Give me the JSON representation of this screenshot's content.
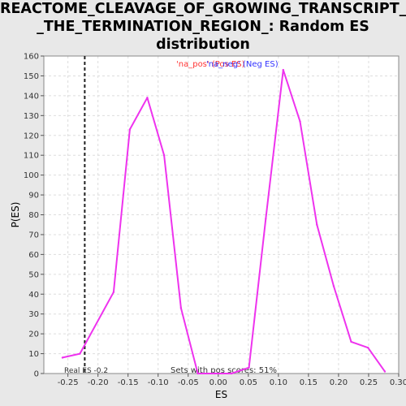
{
  "title_lines": [
    "REACTOME_CLEAVAGE_OF_GROWING_TRANSCRIPT_IN",
    "_THE_TERMINATION_REGION_: Random ES",
    "distribution"
  ],
  "chart_data": {
    "type": "line",
    "xlabel": "ES",
    "ylabel": "P(ES)",
    "xlim": [
      -0.29,
      0.3
    ],
    "ylim": [
      0,
      160
    ],
    "x_ticks": [
      -0.25,
      -0.2,
      -0.15,
      -0.1,
      -0.05,
      0.0,
      0.05,
      0.1,
      0.15,
      0.2,
      0.25,
      0.3
    ],
    "x_tick_labels": [
      "-0.25",
      "-0.20",
      "-0.15",
      "-0.10",
      "-0.05",
      "0.00",
      "0.05",
      "0.10",
      "0.15",
      "0.20",
      "0.25",
      "0.30"
    ],
    "y_ticks": [
      0,
      10,
      20,
      30,
      40,
      50,
      60,
      70,
      80,
      90,
      100,
      110,
      120,
      130,
      140,
      150,
      160
    ],
    "grid": true,
    "series": [
      {
        "color": "#ee33ee",
        "x": [
          -0.259,
          -0.23,
          -0.174,
          -0.147,
          -0.118,
          -0.09,
          -0.062,
          -0.034,
          -0.006,
          0.022,
          0.051,
          0.079,
          0.108,
          0.136,
          0.164,
          0.192,
          0.221,
          0.249,
          0.277
        ],
        "y": [
          8,
          10,
          41,
          123,
          139,
          110,
          33,
          0,
          0,
          0,
          3,
          78,
          153,
          127,
          75,
          44,
          16,
          13,
          1
        ]
      }
    ],
    "real_es": -0.222,
    "real_es_label": "Real ES -0.2",
    "pos_scores_label": "Sets with pos scores: 51%",
    "legend": [
      {
        "text": "'na_pos' (Pos ES)",
        "color": "#ff3333"
      },
      {
        "text": "'na_neg' (Neg ES)",
        "color": "#3333ff"
      }
    ]
  }
}
